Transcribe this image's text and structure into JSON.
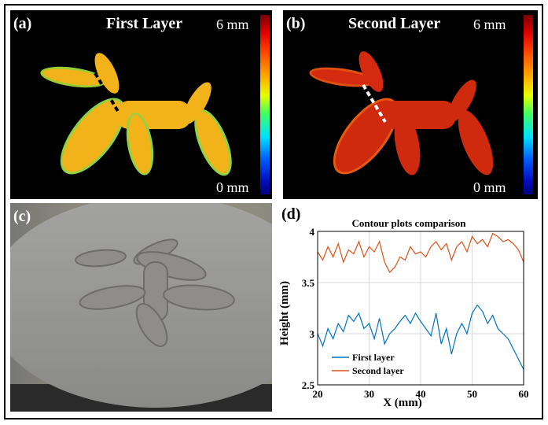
{
  "panel_a": {
    "label": "(a)",
    "title": "First Layer",
    "scale_top": "6 mm",
    "scale_bottom": "0 mm"
  },
  "panel_b": {
    "label": "(b)",
    "title": "Second Layer",
    "scale_top": "6 mm",
    "scale_bottom": "0 mm"
  },
  "panel_c": {
    "label": "(c)"
  },
  "panel_d": {
    "label": "(d)"
  },
  "colors": {
    "first_layer": "#0072bd",
    "second_layer": "#d95319",
    "balloon_a": "#f2b21a",
    "balloon_b": "#d42a10"
  },
  "chart_data": {
    "type": "line",
    "title": "Contour plots comparison",
    "xlabel": "X (mm)",
    "ylabel": "Height (mm)",
    "xlim": [
      20,
      60
    ],
    "ylim": [
      2.5,
      4
    ],
    "xticks": [
      "20",
      "30",
      "40",
      "50",
      "60"
    ],
    "yticks": [
      "2.5",
      "3",
      "3.5",
      "4"
    ],
    "grid": true,
    "legend_position": "bottom-left",
    "x": [
      20,
      21,
      22,
      23,
      24,
      25,
      26,
      27,
      28,
      29,
      30,
      31,
      32,
      33,
      34,
      35,
      36,
      37,
      38,
      39,
      40,
      41,
      42,
      43,
      44,
      45,
      46,
      47,
      48,
      49,
      50,
      51,
      52,
      53,
      54,
      55,
      56,
      57,
      58,
      59,
      60
    ],
    "series": [
      {
        "name": "First layer",
        "values": [
          3.0,
          2.88,
          3.05,
          2.95,
          3.1,
          3.02,
          3.18,
          3.12,
          3.2,
          3.05,
          3.1,
          2.95,
          3.15,
          2.9,
          3.0,
          3.05,
          3.12,
          3.18,
          3.1,
          3.2,
          3.12,
          3.05,
          2.98,
          3.2,
          2.9,
          3.05,
          2.8,
          3.0,
          3.1,
          3.0,
          3.2,
          3.28,
          3.22,
          3.1,
          3.18,
          3.05,
          3.0,
          2.95,
          2.85,
          2.75,
          2.65
        ]
      },
      {
        "name": "Second layer",
        "values": [
          3.8,
          3.72,
          3.85,
          3.75,
          3.88,
          3.7,
          3.82,
          3.78,
          3.9,
          3.75,
          3.85,
          3.8,
          3.9,
          3.7,
          3.6,
          3.65,
          3.75,
          3.72,
          3.85,
          3.78,
          3.8,
          3.75,
          3.85,
          3.9,
          3.82,
          3.88,
          3.72,
          3.85,
          3.9,
          3.8,
          3.95,
          3.88,
          3.92,
          3.85,
          3.98,
          3.95,
          3.9,
          3.92,
          3.88,
          3.82,
          3.7
        ]
      }
    ]
  }
}
